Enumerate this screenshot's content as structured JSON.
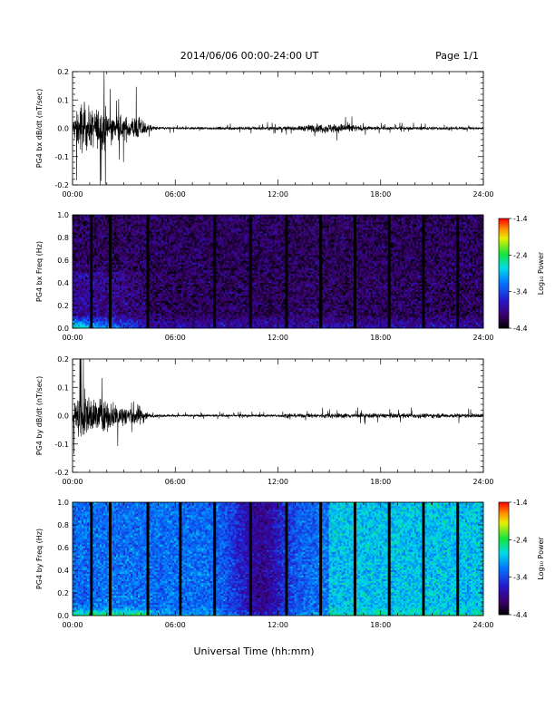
{
  "header": {
    "title": "2014/06/06  00:00-24:00 UT",
    "page": "Page 1/1"
  },
  "xaxis": {
    "label": "Universal Time (hh:mm)",
    "tick_labels": [
      "00:00",
      "06:00",
      "12:00",
      "18:00",
      "24:00"
    ],
    "range_hours": [
      0,
      24
    ]
  },
  "colorbar": {
    "label": "Log₁₀ Power",
    "tick_labels": [
      "-1.4",
      "-2.4",
      "-3.4",
      "-4.4"
    ],
    "range": [
      -4.4,
      -1.4
    ],
    "colormap": "rainbow (black-purple-blue-cyan-green-yellow-red)"
  },
  "chart_data": [
    {
      "type": "line",
      "ylabel": "PG4 bx dB/dt (nT/sec)",
      "ylim": [
        -0.2,
        0.2
      ],
      "y_tick_labels": [
        "0.2",
        "0.1",
        "0.0",
        "-0.1",
        "-0.2"
      ],
      "x_hours": [
        0,
        0.5,
        1,
        1.5,
        2,
        2.5,
        3,
        3.5,
        4,
        4.5,
        5,
        6,
        8,
        10,
        12,
        12.5,
        13,
        14,
        15,
        16,
        17,
        18,
        20,
        22,
        24
      ],
      "amplitude": [
        0.05,
        0.17,
        0.12,
        0.13,
        0.12,
        0.08,
        0.07,
        0.08,
        0.07,
        0.02,
        0.01,
        0.008,
        0.008,
        0.01,
        0.012,
        0.012,
        0.012,
        0.025,
        0.03,
        0.028,
        0.015,
        0.01,
        0.01,
        0.01,
        0.008
      ]
    },
    {
      "type": "heatmap",
      "ylabel": "PG4 bx Freq (Hz)",
      "ylim": [
        0.0,
        1.0
      ],
      "y_tick_labels": [
        "1.0",
        "0.8",
        "0.6",
        "0.4",
        "0.2",
        "0.0"
      ],
      "data_gaps_hours": [
        1.1,
        2.2,
        4.4,
        8.3,
        10.4,
        12.5,
        14.5,
        16.5,
        18.5,
        20.5,
        22.5
      ],
      "mean_log_power": -4.1
    },
    {
      "type": "line",
      "ylabel": "PG4 by dB/dt (nT/sec)",
      "ylim": [
        -0.2,
        0.2
      ],
      "y_tick_labels": [
        "0.2",
        "0.1",
        "0.0",
        "-0.1",
        "-0.2"
      ],
      "x_hours": [
        0,
        0.5,
        1,
        1.5,
        2,
        2.5,
        3,
        3.5,
        4,
        4.5,
        5,
        6,
        8,
        10,
        12,
        12.5,
        13,
        14,
        15,
        16,
        17,
        18,
        20,
        22,
        24
      ],
      "amplitude": [
        0.06,
        0.16,
        0.12,
        0.11,
        0.1,
        0.08,
        0.07,
        0.08,
        0.06,
        0.012,
        0.008,
        0.007,
        0.007,
        0.007,
        0.008,
        0.015,
        0.012,
        0.014,
        0.016,
        0.015,
        0.016,
        0.014,
        0.015,
        0.014,
        0.013
      ]
    },
    {
      "type": "heatmap",
      "ylabel": "PG4 by Freq (Hz)",
      "ylim": [
        0.0,
        1.0
      ],
      "y_tick_labels": [
        "1.0",
        "0.8",
        "0.6",
        "0.4",
        "0.2",
        "0.0"
      ],
      "data_gaps_hours": [
        1.1,
        2.2,
        4.4,
        6.3,
        8.3,
        10.4,
        12.5,
        14.5,
        16.5,
        18.5,
        20.5,
        22.5
      ],
      "mean_log_power": -3.2
    }
  ]
}
